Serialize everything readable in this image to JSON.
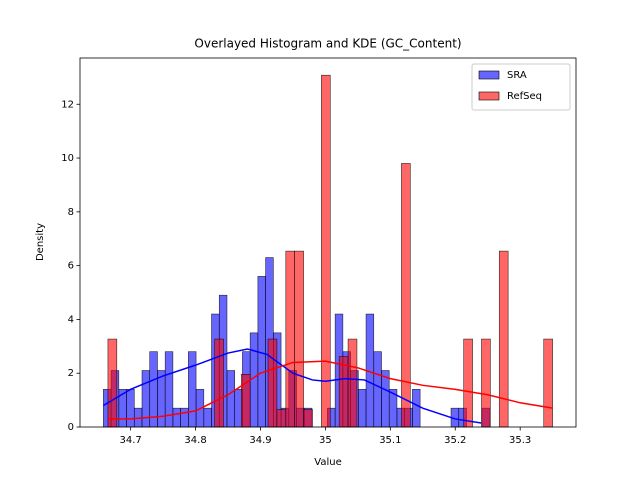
{
  "chart_data": {
    "type": "histogram",
    "title": "Overlayed Histogram and KDE (GC_Content)",
    "xlabel": "Value",
    "ylabel": "Density",
    "xlim": [
      34.622,
      35.386
    ],
    "xticks": [
      34.7,
      34.8,
      34.9,
      35.0,
      35.1,
      35.2,
      35.3
    ],
    "ylim": [
      0,
      13.72
    ],
    "yticks": [
      0,
      2,
      4,
      6,
      8,
      10,
      12
    ],
    "legend": "upper right",
    "series": [
      {
        "name": "SRA",
        "color": "#0000ff",
        "bins": [
          34.658,
          34.6699,
          34.6818,
          34.6937,
          34.7056,
          34.7175,
          34.7294,
          34.7413,
          34.7532,
          34.7651,
          34.777,
          34.7889,
          34.8008,
          34.8127,
          34.8246,
          34.8365,
          34.8484,
          34.8603,
          34.8722,
          34.8841,
          34.896,
          34.9079,
          34.9198,
          34.9317,
          34.9436,
          34.9555,
          34.9674,
          34.9793,
          34.9912,
          35.0031,
          35.015,
          35.0269,
          35.0388,
          35.0507,
          35.0626,
          35.0745,
          35.0864,
          35.0983,
          35.1102,
          35.1221,
          35.134,
          35.1459,
          35.1578,
          35.1697,
          35.1816,
          35.1935,
          35.2054,
          35.2173,
          35.2292,
          35.2411,
          35.253
        ],
        "values": [
          1.4,
          2.1,
          1.4,
          1.4,
          0.7,
          2.1,
          2.8,
          2.1,
          2.8,
          0.7,
          0.7,
          2.8,
          1.4,
          0.7,
          4.2,
          4.9,
          2.1,
          1.4,
          2.8,
          3.5,
          5.6,
          6.3,
          3.5,
          0.7,
          2.1,
          0.7,
          0.7,
          0,
          0,
          0.7,
          4.2,
          2.8,
          2.1,
          1.4,
          4.2,
          2.8,
          2.1,
          1.4,
          0.7,
          0.7,
          1.4,
          0,
          0,
          0,
          0,
          0.7,
          0.7,
          0,
          0,
          0.7
        ],
        "kde": {
          "x": [
            34.658,
            34.7,
            34.75,
            34.8,
            34.85,
            34.88,
            34.91,
            34.95,
            34.98,
            35.0,
            35.03,
            35.06,
            35.1,
            35.15,
            35.2,
            35.24
          ],
          "y": [
            0.8,
            1.4,
            1.9,
            2.3,
            2.75,
            2.9,
            2.7,
            2.0,
            1.75,
            1.7,
            1.8,
            1.75,
            1.3,
            0.7,
            0.3,
            0.15
          ]
        }
      },
      {
        "name": "RefSeq",
        "color": "#ff0000",
        "bins": [
          34.665,
          34.6787,
          34.6924,
          34.7061,
          34.7198,
          34.7335,
          34.7472,
          34.7609,
          34.7746,
          34.7883,
          34.802,
          34.8157,
          34.8294,
          34.8431,
          34.8568,
          34.8705,
          34.8842,
          34.8979,
          34.9116,
          34.9253,
          34.939,
          34.9527,
          34.9664,
          34.9801,
          34.9938,
          35.0075,
          35.0212,
          35.0349,
          35.0486,
          35.0623,
          35.076,
          35.0897,
          35.1034,
          35.1171,
          35.1308,
          35.1445,
          35.1582,
          35.1719,
          35.1856,
          35.1993,
          35.213,
          35.2267,
          35.2404,
          35.2541,
          35.2678,
          35.2815,
          35.2952,
          35.3089,
          35.3226,
          35.3363,
          35.35
        ],
        "values": [
          3.27,
          0,
          0,
          0,
          0,
          0,
          0,
          0,
          0,
          0,
          0,
          0,
          3.27,
          0,
          0,
          1.96,
          0,
          0,
          3.27,
          0.65,
          6.54,
          6.54,
          0.65,
          0,
          13.08,
          0,
          2.62,
          3.27,
          0,
          0,
          0,
          0,
          0,
          9.8,
          0,
          0,
          0,
          0,
          0,
          0,
          3.27,
          0,
          3.27,
          0,
          6.54,
          0,
          0,
          0,
          0,
          3.27
        ],
        "kde": {
          "x": [
            34.665,
            34.7,
            34.75,
            34.8,
            34.85,
            34.9,
            34.95,
            35.0,
            35.05,
            35.1,
            35.15,
            35.2,
            35.25,
            35.3,
            35.35
          ],
          "y": [
            0.3,
            0.3,
            0.4,
            0.6,
            1.2,
            2.0,
            2.4,
            2.45,
            2.2,
            1.8,
            1.55,
            1.4,
            1.2,
            0.9,
            0.7
          ]
        }
      }
    ]
  }
}
